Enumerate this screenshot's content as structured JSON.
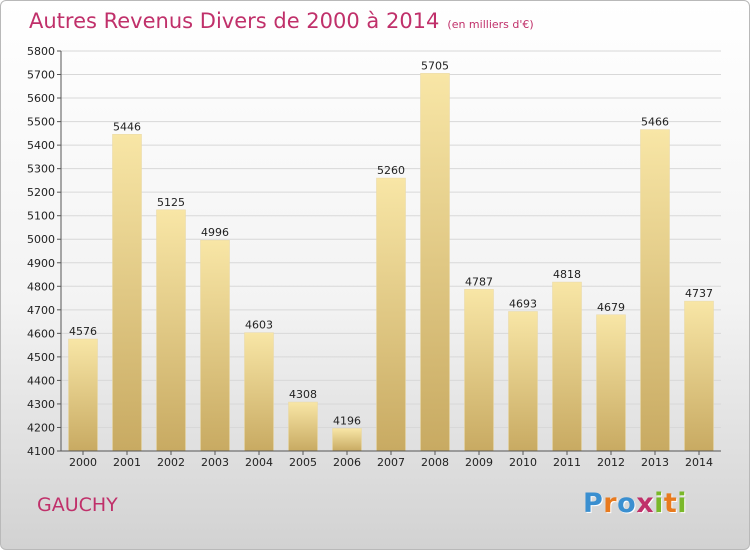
{
  "title": "Autres Revenus Divers de 2000 à 2014",
  "title_unit": "(en milliers d'€)",
  "city": "GAUCHY",
  "logo": {
    "text": "Proxiti",
    "letters": [
      {
        "ch": "P",
        "color": "#3a8fd0"
      },
      {
        "ch": "r",
        "color": "#e87a1e"
      },
      {
        "ch": "o",
        "color": "#3a8fd0"
      },
      {
        "ch": "x",
        "color": "#c0306a"
      },
      {
        "ch": "i",
        "color": "#7ab829"
      },
      {
        "ch": "t",
        "color": "#e87a1e"
      },
      {
        "ch": "i",
        "color": "#7ab829"
      }
    ]
  },
  "colors": {
    "title": "#c0306a",
    "bar_light": "#f8e6a6",
    "bar_dark": "#c8aa62",
    "grid": "#d8d8d8"
  },
  "chart_data": {
    "type": "bar",
    "title": "Autres Revenus Divers de 2000 à 2014",
    "xlabel": "",
    "ylabel": "",
    "categories": [
      "2000",
      "2001",
      "2002",
      "2003",
      "2004",
      "2005",
      "2006",
      "2007",
      "2008",
      "2009",
      "2010",
      "2011",
      "2012",
      "2013",
      "2014"
    ],
    "values": [
      4576,
      5446,
      5125,
      4996,
      4603,
      4308,
      4196,
      5260,
      5705,
      4787,
      4693,
      4818,
      4679,
      5466,
      4737
    ],
    "ylim": [
      4100,
      5800
    ],
    "yticks": [
      4100,
      4200,
      4300,
      4400,
      4500,
      4600,
      4700,
      4800,
      4900,
      5000,
      5100,
      5200,
      5300,
      5400,
      5500,
      5600,
      5700,
      5800
    ],
    "grid": true,
    "legend": "none"
  }
}
